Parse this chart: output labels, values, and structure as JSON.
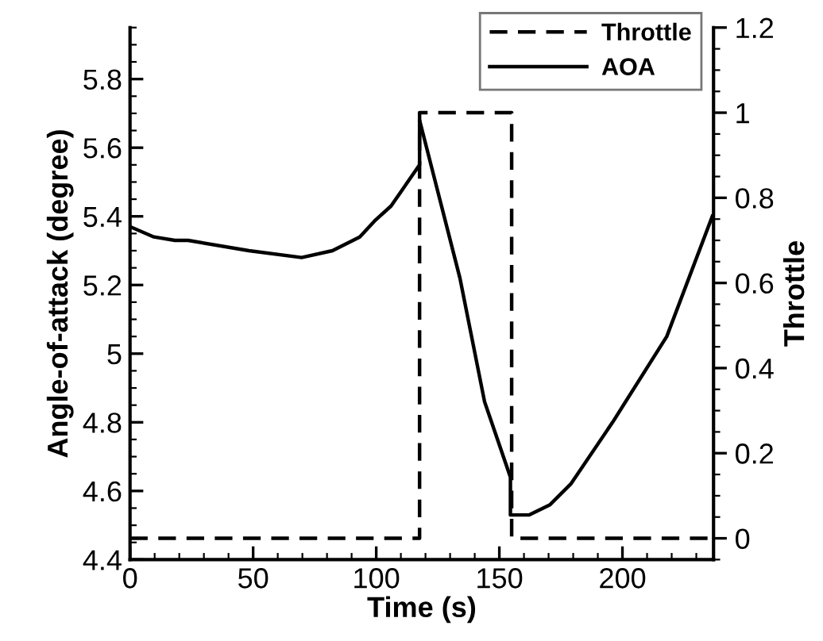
{
  "chart_data": {
    "type": "line",
    "xlabel": "Time (s)",
    "ylabel": "Angle-of-attack (degree)",
    "y2label": "Throttle",
    "xlim": [
      0,
      237
    ],
    "xticks": [
      0,
      50,
      100,
      150,
      200
    ],
    "ylim": [
      4.4,
      5.95
    ],
    "yticks": [
      4.4,
      4.6,
      4.8,
      5,
      5.2,
      5.4,
      5.6,
      5.8
    ],
    "y2lim": [
      -0.05,
      1.2
    ],
    "y2ticks": [
      0,
      0.2,
      0.4,
      0.6,
      0.8,
      1,
      1.2
    ],
    "legend": "top right",
    "grid": false,
    "marker": "none",
    "series": [
      {
        "name": "Throttle",
        "color": "#000000",
        "axis": "y2",
        "line_style": "dashed",
        "x": [
          0,
          117.6,
          117.6,
          155,
          155,
          237
        ],
        "values": [
          0,
          0,
          1,
          1,
          0,
          0
        ]
      },
      {
        "name": "AOA",
        "color": "#000000",
        "axis": "y",
        "line_style": "solid",
        "x": [
          0,
          9.7,
          18.2,
          23.6,
          48.3,
          69.7,
          82.2,
          93.3,
          99.8,
          106,
          117.6,
          117.6,
          134,
          144,
          154.5,
          154.5,
          162,
          170.6,
          179,
          196,
          218,
          236.5
        ],
        "values": [
          5.37,
          5.34,
          5.33,
          5.33,
          5.3,
          5.28,
          5.3,
          5.34,
          5.39,
          5.43,
          5.55,
          5.68,
          5.22,
          4.86,
          4.64,
          4.53,
          4.53,
          4.56,
          4.62,
          4.8,
          5.05,
          5.4
        ]
      }
    ]
  }
}
